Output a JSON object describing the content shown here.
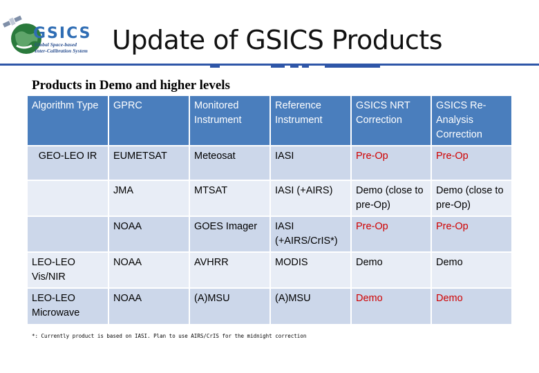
{
  "logo": {
    "name": "GSICS",
    "tagline_line1": "Global Space-based",
    "tagline_line2": "Inter-Calibration System",
    "colors": {
      "globe": "#2a7a3c",
      "name": "#2f6db4"
    }
  },
  "title": "Update of GSICS Products",
  "subtitle": "Products in Demo and higher levels",
  "table": {
    "headers": [
      "Algorithm Type",
      "GPRC",
      "Monitored Instrument",
      "Reference Instrument",
      "GSICS NRT Correction",
      "GSICS Re-Analysis Correction"
    ],
    "rows": [
      {
        "algorithm": "GEO-LEO IR",
        "gprc": "EUMETSAT",
        "monitored": "Meteosat",
        "reference": "IASI",
        "nrt": "Pre-Op",
        "reanalysis": "Pre-Op"
      },
      {
        "algorithm": "",
        "gprc": "JMA",
        "monitored": "MTSAT",
        "reference": "IASI (+AIRS)",
        "nrt": "Demo (close to pre-Op)",
        "reanalysis": "Demo (close to pre-Op)"
      },
      {
        "algorithm": "",
        "gprc": "NOAA",
        "monitored": "GOES Imager",
        "reference": "IASI (+AIRS/CrIS*)",
        "nrt": "Pre-Op",
        "reanalysis": "Pre-Op"
      },
      {
        "algorithm": "LEO-LEO Vis/NIR",
        "gprc": "NOAA",
        "monitored": "AVHRR",
        "reference": "MODIS",
        "nrt": "Demo",
        "reanalysis": "Demo"
      },
      {
        "algorithm": "LEO-LEO Microwave",
        "gprc": "NOAA",
        "monitored": "(A)MSU",
        "reference": "(A)MSU",
        "nrt": "Demo",
        "reanalysis": "Demo"
      }
    ],
    "colors": {
      "header_bg": "#4a7ebd",
      "row_dark": "#ccd7ea",
      "row_light": "#e8edf6",
      "highlight": "#d00000"
    }
  },
  "footnote": "*: Currently product is based on IASI. Plan to use AIRS/CrIS for the midnight correction"
}
